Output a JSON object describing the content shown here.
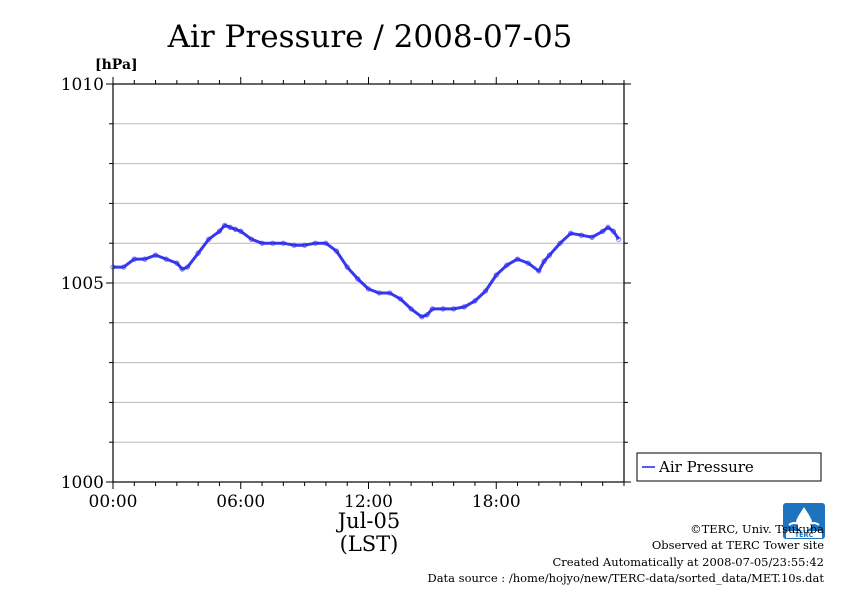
{
  "chart_data": {
    "type": "line",
    "title": "Air Pressure / 2008-07-05",
    "ylabel": "[hPa]",
    "ylim": [
      1000,
      1010
    ],
    "yticks": [
      1000,
      1005,
      1010
    ],
    "xlim": [
      0,
      24
    ],
    "xticks": [
      {
        "x": 0,
        "label": "00:00"
      },
      {
        "x": 6,
        "label": "06:00"
      },
      {
        "x": 12,
        "label": "12:00"
      },
      {
        "x": 18,
        "label": "18:00"
      }
    ],
    "date_label": "Jul-05",
    "xlabel": "(LST)",
    "grid": true,
    "legend_position": "right",
    "series": [
      {
        "name": "Air Pressure",
        "color": "#2222ee",
        "x": [
          0,
          0.5,
          1,
          1.5,
          2,
          2.5,
          3,
          3.25,
          3.5,
          4,
          4.5,
          5,
          5.25,
          5.5,
          5.75,
          6,
          6.5,
          7,
          7.5,
          8,
          8.5,
          9,
          9.5,
          10,
          10.5,
          11,
          11.5,
          12,
          12.5,
          13,
          13.5,
          14,
          14.5,
          14.75,
          15,
          15.5,
          16,
          16.5,
          17,
          17.5,
          18,
          18.5,
          19,
          19.5,
          20,
          20.25,
          20.5,
          21,
          21.5,
          22,
          22.5,
          23,
          23.25,
          23.5,
          23.75
        ],
        "y": [
          1005.4,
          1005.4,
          1005.6,
          1005.6,
          1005.7,
          1005.6,
          1005.5,
          1005.35,
          1005.4,
          1005.75,
          1006.1,
          1006.3,
          1006.45,
          1006.4,
          1006.35,
          1006.3,
          1006.1,
          1006.0,
          1006.0,
          1006.0,
          1005.95,
          1005.95,
          1006.0,
          1006.0,
          1005.8,
          1005.4,
          1005.1,
          1004.85,
          1004.75,
          1004.75,
          1004.6,
          1004.35,
          1004.15,
          1004.2,
          1004.35,
          1004.35,
          1004.35,
          1004.4,
          1004.55,
          1004.8,
          1005.2,
          1005.45,
          1005.6,
          1005.5,
          1005.3,
          1005.55,
          1005.7,
          1006.0,
          1006.25,
          1006.2,
          1006.15,
          1006.3,
          1006.4,
          1006.3,
          1006.1
        ]
      }
    ]
  },
  "credits": {
    "copyright": "©TERC, Univ. Tsukuba",
    "site": "Observed at TERC Tower site",
    "created": "Created Automatically at 2008-07-05/23:55:42",
    "source": "Data source : /home/hojyo/new/TERC-data/sorted_data/MET.10s.dat"
  },
  "logo": {
    "label": "TERC",
    "icon": "terc-logo-icon",
    "color": "#1e73be"
  }
}
